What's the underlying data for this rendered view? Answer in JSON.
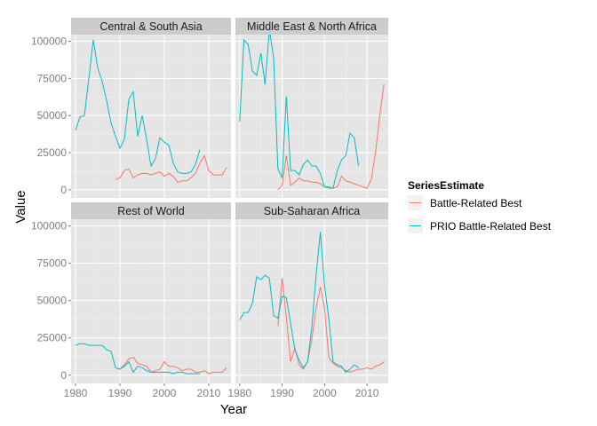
{
  "chart_data": {
    "type": "line",
    "xlabel": "Year",
    "ylabel": "Value",
    "x_ticks": [
      1980,
      1990,
      2000,
      2010
    ],
    "y_ticks": [
      0,
      25000,
      50000,
      75000,
      100000
    ],
    "y_tick_labels": [
      "0",
      "25000",
      "50000",
      "75000",
      "100000"
    ],
    "xlim": [
      1979,
      2015
    ],
    "ylim": [
      -5500,
      104500
    ],
    "grid": true,
    "legend": {
      "title": "SeriesEstimate",
      "position": "right",
      "entries": [
        {
          "name": "Battle-Related Best",
          "color": "#F8766D"
        },
        {
          "name": "PRIO Battle-Related Best",
          "color": "#00BFC4"
        }
      ]
    },
    "panels": [
      {
        "title": "Central & South Asia",
        "series": [
          {
            "name": "Battle-Related Best",
            "x": [
              1989,
              1990,
              1991,
              1992,
              1993,
              1994,
              1995,
              1996,
              1997,
              1998,
              1999,
              2000,
              2001,
              2002,
              2003,
              2004,
              2005,
              2006,
              2007,
              2008,
              2009,
              2010,
              2011,
              2012,
              2013,
              2014
            ],
            "y": [
              7000,
              8000,
              13000,
              14000,
              8000,
              10000,
              11000,
              11000,
              10000,
              11000,
              12000,
              9000,
              11000,
              9000,
              5000,
              6000,
              6000,
              8000,
              11000,
              18000,
              23000,
              13000,
              10000,
              10000,
              10000,
              15000
            ]
          },
          {
            "name": "PRIO Battle-Related Best",
            "x": [
              1980,
              1981,
              1982,
              1983,
              1984,
              1985,
              1986,
              1987,
              1988,
              1989,
              1990,
              1991,
              1992,
              1993,
              1994,
              1995,
              1996,
              1997,
              1998,
              1999,
              2000,
              2001,
              2002,
              2003,
              2004,
              2005,
              2006,
              2007,
              2008
            ],
            "y": [
              40000,
              49000,
              50000,
              75000,
              101000,
              82000,
              73000,
              60000,
              45000,
              36000,
              28000,
              34000,
              61000,
              66000,
              36000,
              50000,
              34000,
              16000,
              21000,
              35000,
              32000,
              30000,
              18000,
              12000,
              11000,
              11000,
              12000,
              17000,
              27000
            ]
          }
        ]
      },
      {
        "title": "Middle East & North Africa",
        "series": [
          {
            "name": "Battle-Related Best",
            "x": [
              1989,
              1990,
              1991,
              1992,
              1993,
              1994,
              1995,
              1996,
              1997,
              1998,
              1999,
              2000,
              2001,
              2002,
              2003,
              2004,
              2005,
              2006,
              2007,
              2008,
              2009,
              2010,
              2011,
              2012,
              2013,
              2014
            ],
            "y": [
              0,
              3000,
              23000,
              3000,
              5000,
              8000,
              6000,
              6000,
              5000,
              5000,
              4000,
              2000,
              1000,
              1000,
              2000,
              9000,
              6000,
              5000,
              4000,
              3000,
              2000,
              1000,
              7000,
              25000,
              50000,
              71000
            ]
          },
          {
            "name": "PRIO Battle-Related Best",
            "x": [
              1980,
              1981,
              1982,
              1983,
              1984,
              1985,
              1986,
              1987,
              1988,
              1989,
              1990,
              1991,
              1992,
              1993,
              1994,
              1995,
              1996,
              1997,
              1998,
              1999,
              2000,
              2001,
              2002,
              2003,
              2004,
              2005,
              2006,
              2007,
              2008
            ],
            "y": [
              46000,
              101000,
              98000,
              80000,
              77000,
              92000,
              71000,
              108000,
              89000,
              14000,
              8000,
              63000,
              13000,
              13000,
              10000,
              17000,
              20000,
              16000,
              16000,
              11000,
              2000,
              2000,
              1000,
              13000,
              20000,
              23000,
              38000,
              35000,
              16000
            ]
          }
        ]
      },
      {
        "title": "Rest of World",
        "series": [
          {
            "name": "Battle-Related Best",
            "x": [
              1989,
              1990,
              1991,
              1992,
              1993,
              1994,
              1995,
              1996,
              1997,
              1998,
              1999,
              2000,
              2001,
              2002,
              2003,
              2004,
              2005,
              2006,
              2007,
              2008,
              2009,
              2010,
              2011,
              2012,
              2013,
              2014
            ],
            "y": [
              5000,
              4000,
              7000,
              11000,
              12000,
              8000,
              7000,
              6000,
              2000,
              3000,
              4000,
              9000,
              6000,
              6000,
              5000,
              3000,
              4000,
              4000,
              2000,
              2000,
              3000,
              1000,
              2000,
              2000,
              2000,
              5000
            ]
          },
          {
            "name": "PRIO Battle-Related Best",
            "x": [
              1980,
              1981,
              1982,
              1983,
              1984,
              1985,
              1986,
              1987,
              1988,
              1989,
              1990,
              1991,
              1992,
              1993,
              1994,
              1995,
              1996,
              1997,
              1998,
              1999,
              2000,
              2001,
              2002,
              2003,
              2004,
              2005,
              2006,
              2007,
              2008
            ],
            "y": [
              20000,
              21000,
              21000,
              20000,
              20000,
              20000,
              20000,
              17000,
              16000,
              5000,
              4000,
              6000,
              9000,
              2000,
              6000,
              5000,
              3000,
              2000,
              2000,
              2000,
              2000,
              2000,
              1000,
              2000,
              2000,
              1000,
              1000,
              1000,
              1000
            ]
          }
        ]
      },
      {
        "title": "Sub-Saharan Africa",
        "series": [
          {
            "name": "Battle-Related Best",
            "x": [
              1989,
              1990,
              1991,
              1992,
              1993,
              1994,
              1995,
              1996,
              1997,
              1998,
              1999,
              2000,
              2001,
              2002,
              2003,
              2004,
              2005,
              2006,
              2007,
              2008,
              2009,
              2010,
              2011,
              2012,
              2013,
              2014
            ],
            "y": [
              33000,
              65000,
              39000,
              9000,
              18000,
              7000,
              4000,
              9000,
              24000,
              45000,
              59000,
              45000,
              12000,
              8000,
              6000,
              5000,
              3000,
              2000,
              3000,
              4000,
              4000,
              5000,
              4000,
              6000,
              7000,
              9000
            ]
          },
          {
            "name": "PRIO Battle-Related Best",
            "x": [
              1980,
              1981,
              1982,
              1983,
              1984,
              1985,
              1986,
              1987,
              1988,
              1989,
              1990,
              1991,
              1992,
              1993,
              1994,
              1995,
              1996,
              1997,
              1998,
              1999,
              2000,
              2001,
              2002,
              2003,
              2004,
              2005,
              2006,
              2007,
              2008
            ],
            "y": [
              37000,
              42000,
              42000,
              48000,
              66000,
              64000,
              67000,
              65000,
              40000,
              38000,
              53000,
              52000,
              35000,
              17000,
              10000,
              5000,
              9000,
              32000,
              67000,
              96000,
              60000,
              38000,
              9000,
              7000,
              6000,
              2000,
              4000,
              7000,
              5000
            ]
          }
        ]
      }
    ]
  }
}
